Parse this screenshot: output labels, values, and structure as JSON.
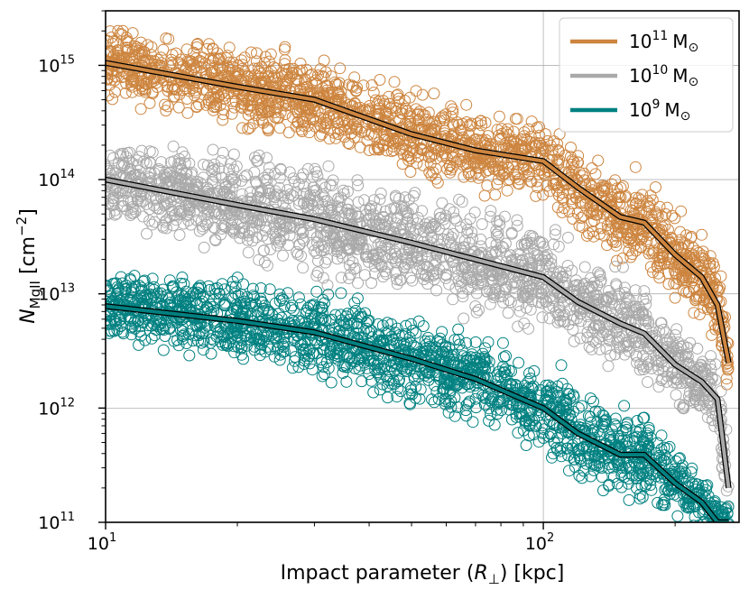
{
  "chart_data": {
    "type": "scatter",
    "title": "",
    "xlabel": "Impact parameter (R⊥) [kpc]",
    "ylabel": "N_MgII [cm⁻²]",
    "xscale": "log",
    "yscale": "log",
    "xlim": [
      10,
      280
    ],
    "ylim": [
      100000000000.0,
      3000000000000000.0
    ],
    "grid": true,
    "legend_position": "top-right",
    "xtick_labels": [
      {
        "value": 10,
        "mantissa": "10",
        "exp": "1"
      },
      {
        "value": 100,
        "mantissa": "10",
        "exp": "2"
      }
    ],
    "ytick_labels": [
      {
        "value": 100000000000.0,
        "mantissa": "10",
        "exp": "11"
      },
      {
        "value": 1000000000000.0,
        "mantissa": "10",
        "exp": "12"
      },
      {
        "value": 10000000000000.0,
        "mantissa": "10",
        "exp": "13"
      },
      {
        "value": 100000000000000.0,
        "mantissa": "10",
        "exp": "14"
      },
      {
        "value": 1000000000000000.0,
        "mantissa": "10",
        "exp": "15"
      }
    ],
    "series": [
      {
        "name": "10^11 M⊙",
        "legend_mantissa": "10",
        "legend_exp": "11",
        "legend_unit": "M",
        "legend_sub": "⊙",
        "color": "#CD853F",
        "median_x": [
          10,
          20,
          30,
          50,
          70,
          100,
          120,
          150,
          170,
          200,
          230,
          250,
          265
        ],
        "median_y": [
          1050000000000000.0,
          650000000000000.0,
          500000000000000.0,
          250000000000000.0,
          180000000000000.0,
          145000000000000.0,
          85000000000000.0,
          47000000000000.0,
          42000000000000.0,
          22000000000000.0,
          14000000000000.0,
          8000000000000.0,
          2500000000000.0
        ],
        "scatter_upper_y": [
          2000000000000000.0,
          2000000000000000.0,
          1300000000000000.0,
          700000000000000.0,
          500000000000000.0,
          350000000000000.0,
          250000000000000.0,
          160000000000000.0,
          120000000000000.0,
          80000000000000.0,
          50000000000000.0,
          35000000000000.0,
          25000000000000.0
        ],
        "scatter_lower_y": [
          300000000000000.0,
          250000000000000.0,
          160000000000000.0,
          80000000000000.0,
          60000000000000.0,
          50000000000000.0,
          30000000000000.0,
          17000000000000.0,
          12000000000000.0,
          8000000000000.0,
          5000000000000.0,
          3500000000000.0,
          2500000000000.0
        ]
      },
      {
        "name": "10^10 M⊙",
        "legend_mantissa": "10",
        "legend_exp": "10",
        "legend_unit": "M",
        "legend_sub": "⊙",
        "color": "#A9A9A9",
        "median_x": [
          10,
          20,
          30,
          50,
          70,
          100,
          120,
          150,
          170,
          200,
          230,
          250,
          265
        ],
        "median_y": [
          100000000000000.0,
          60000000000000.0,
          45000000000000.0,
          28000000000000.0,
          20000000000000.0,
          14000000000000.0,
          8500000000000.0,
          5500000000000.0,
          4500000000000.0,
          2400000000000.0,
          1700000000000.0,
          1200000000000.0,
          200000000000.0
        ],
        "scatter_upper_y": [
          160000000000000.0,
          240000000000000.0,
          190000000000000.0,
          120000000000000.0,
          90000000000000.0,
          60000000000000.0,
          40000000000000.0,
          28000000000000.0,
          22000000000000.0,
          14000000000000.0,
          9000000000000.0,
          6000000000000.0,
          4000000000000.0
        ],
        "scatter_lower_y": [
          20000000000000.0,
          16000000000000.0,
          12000000000000.0,
          8000000000000.0,
          6000000000000.0,
          4500000000000.0,
          3000000000000.0,
          2000000000000.0,
          1600000000000.0,
          1200000000000.0,
          900000000000.0,
          600000000000.0,
          200000000000.0
        ]
      },
      {
        "name": "10^9 M⊙",
        "legend_mantissa": "10",
        "legend_exp": "9",
        "legend_unit": "M",
        "legend_sub": "⊙",
        "color": "#008080",
        "median_x": [
          10,
          20,
          30,
          50,
          70,
          100,
          120,
          150,
          170,
          200,
          230,
          250,
          265
        ],
        "median_y": [
          7800000000000.0,
          5800000000000.0,
          4600000000000.0,
          2700000000000.0,
          1800000000000.0,
          1000000000000.0,
          600000000000.0,
          390000000000.0,
          390000000000.0,
          220000000000.0,
          150000000000.0,
          100000000000.0,
          100000000000.0
        ],
        "scatter_upper_y": [
          14000000000000.0,
          16000000000000.0,
          12000000000000.0,
          6500000000000.0,
          5000000000000.0,
          3200000000000.0,
          2200000000000.0,
          1400000000000.0,
          1200000000000.0,
          800000000000.0,
          600000000000.0,
          400000000000.0,
          300000000000.0
        ],
        "scatter_lower_y": [
          2500000000000.0,
          1600000000000.0,
          1200000000000.0,
          700000000000.0,
          450000000000.0,
          250000000000.0,
          170000000000.0,
          120000000000.0,
          100000000000.0,
          100000000000.0,
          100000000000.0,
          100000000000.0,
          100000000000.0
        ]
      }
    ]
  }
}
